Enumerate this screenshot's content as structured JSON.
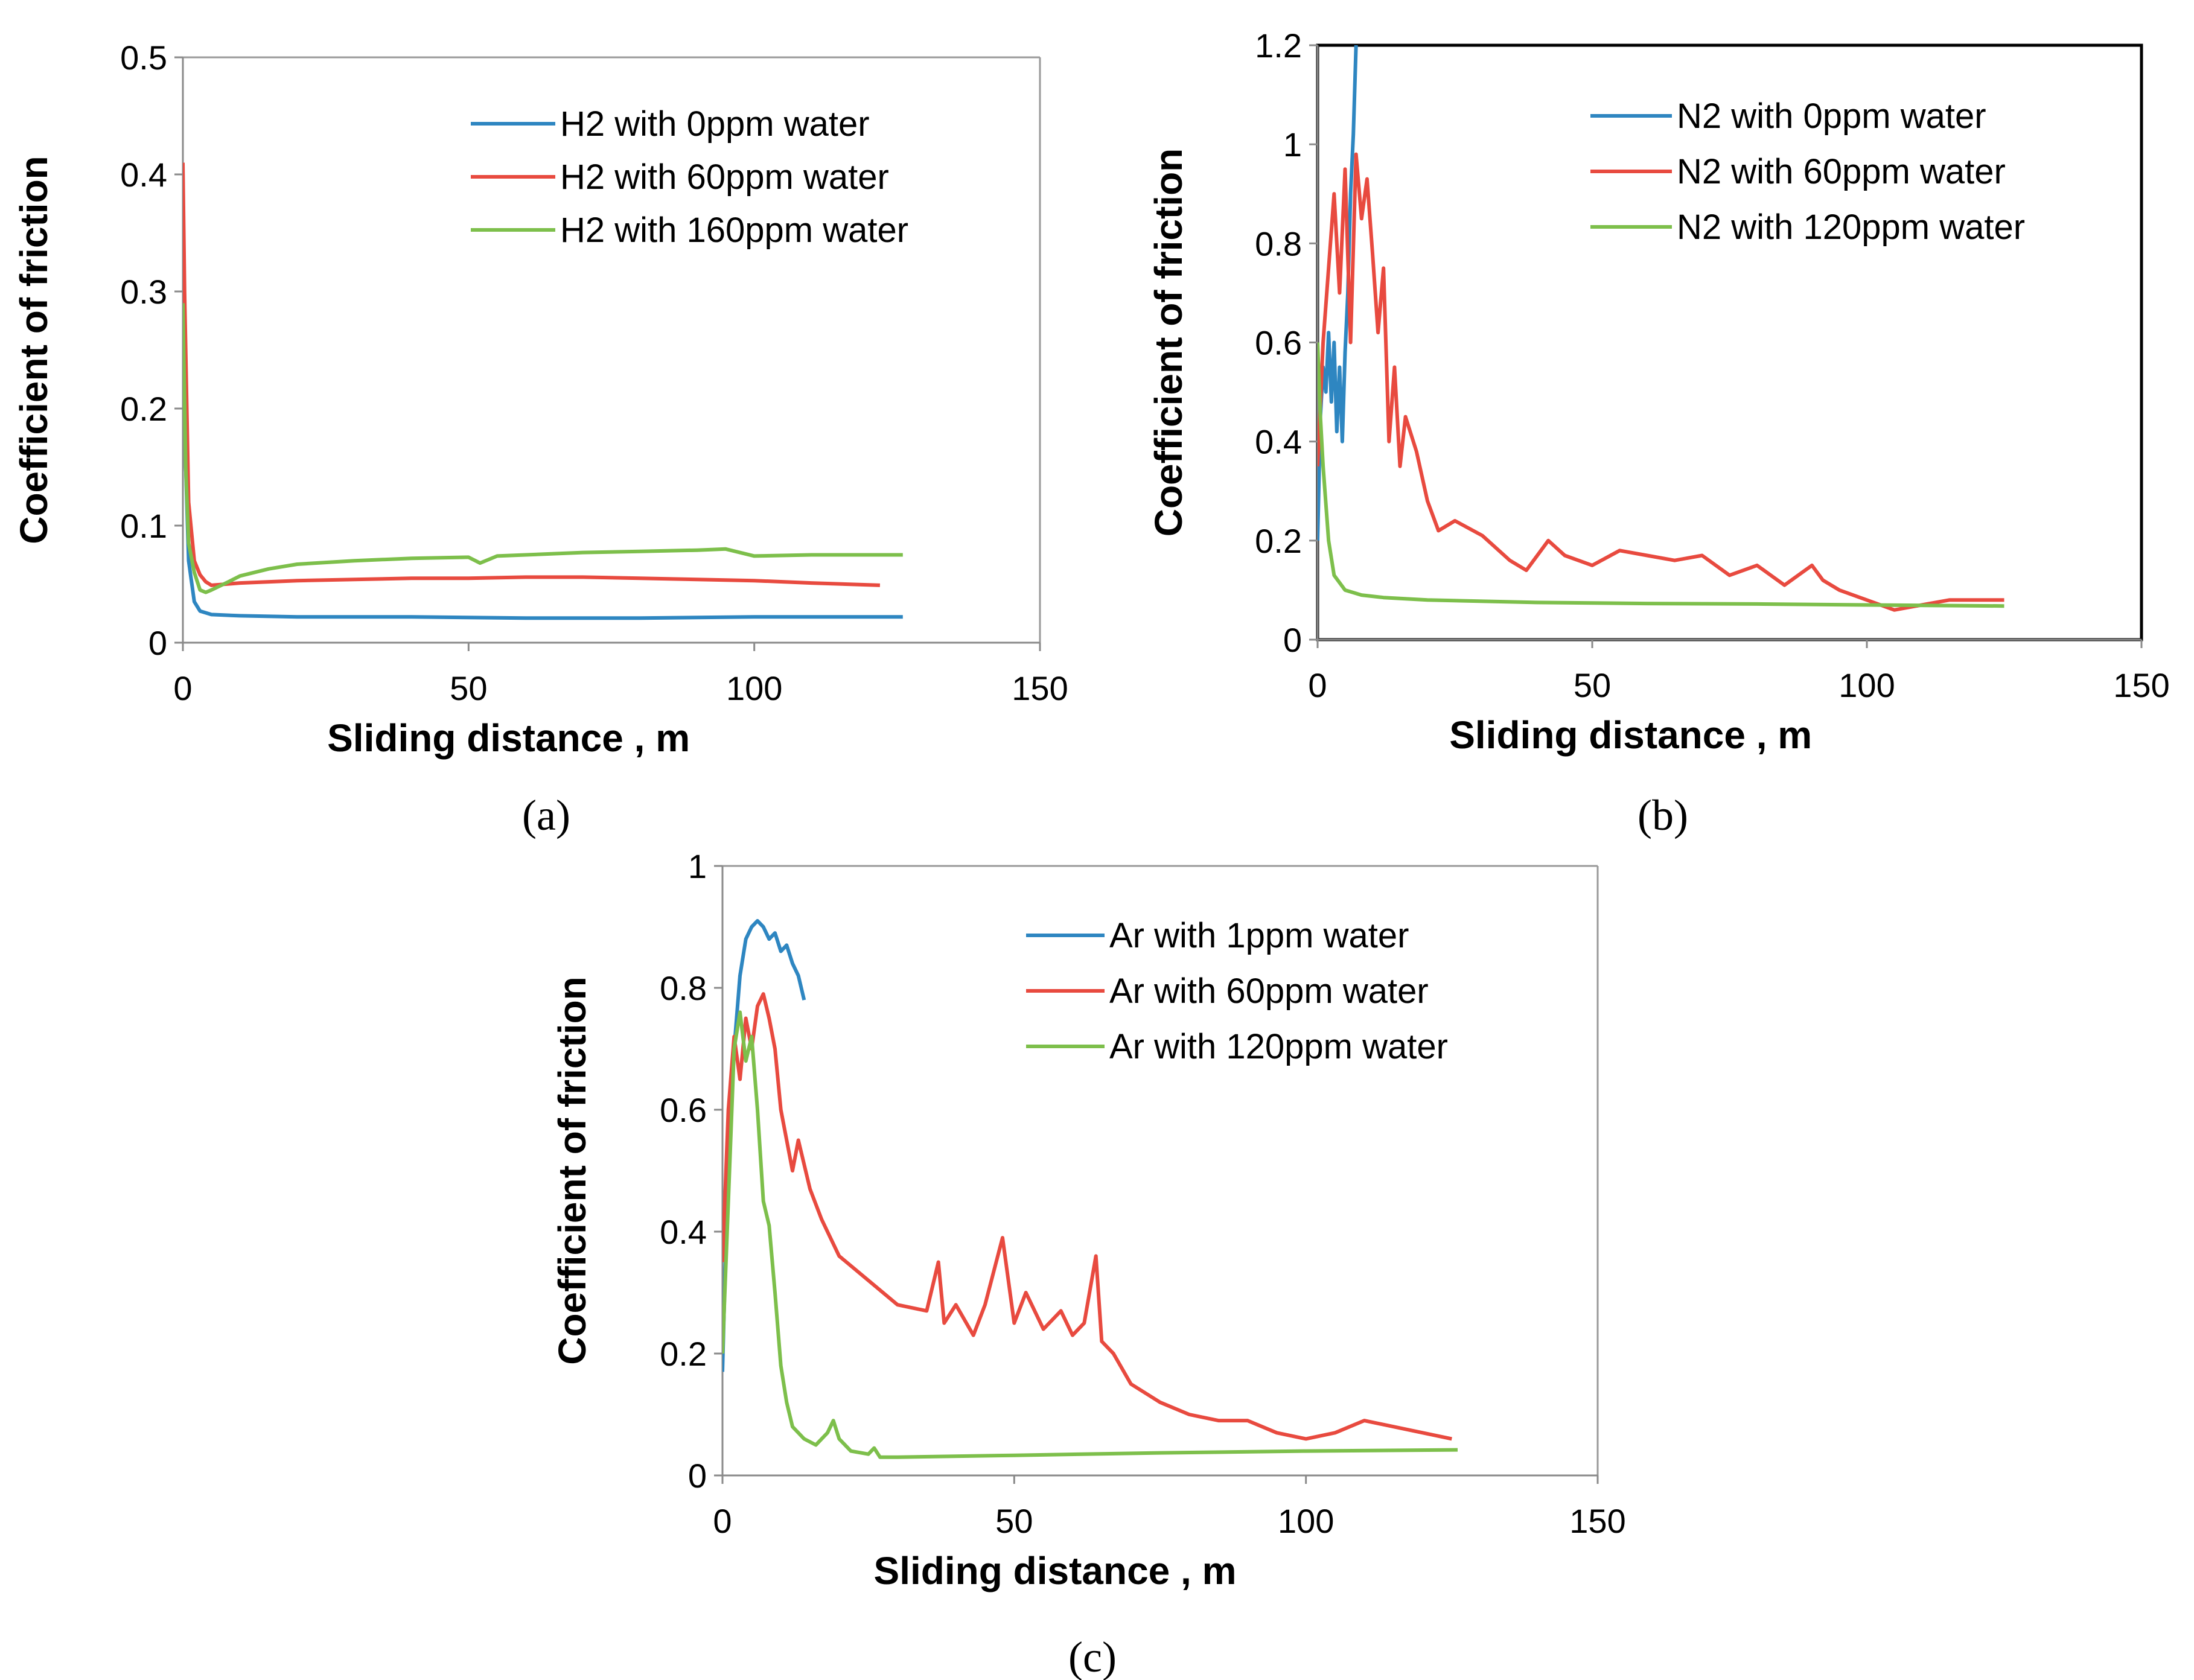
{
  "chart_data": [
    {
      "type": "line",
      "caption": "(a)",
      "xlabel": "Sliding distance , m",
      "ylabel": "Coefficient of friction",
      "xlim": [
        0,
        150
      ],
      "ylim": [
        0,
        0.5
      ],
      "xticks": [
        "0",
        "50",
        "100",
        "150"
      ],
      "yticks": [
        "0",
        "0.1",
        "0.2",
        "0.3",
        "0.4",
        "0.5"
      ],
      "legend_position": "top-right",
      "border": "partial",
      "series": [
        {
          "name": "H2 with 0ppm water",
          "color": "#2E86C1",
          "x": [
            0,
            0.5,
            1,
            2,
            3,
            5,
            10,
            20,
            40,
            60,
            80,
            100,
            126
          ],
          "y": [
            0.4,
            0.15,
            0.07,
            0.035,
            0.027,
            0.024,
            0.023,
            0.022,
            0.022,
            0.021,
            0.021,
            0.022,
            0.022
          ]
        },
        {
          "name": "H2 with 60ppm water",
          "color": "#E84A3F",
          "x": [
            0,
            0.3,
            1,
            2,
            3,
            4,
            5,
            10,
            20,
            30,
            40,
            50,
            60,
            70,
            80,
            90,
            100,
            110,
            122
          ],
          "y": [
            0.41,
            0.3,
            0.12,
            0.07,
            0.058,
            0.052,
            0.049,
            0.051,
            0.053,
            0.054,
            0.055,
            0.055,
            0.056,
            0.056,
            0.055,
            0.054,
            0.053,
            0.051,
            0.049
          ]
        },
        {
          "name": "H2 with 160ppm water",
          "color": "#7DBF4B",
          "x": [
            0,
            0.5,
            1,
            2,
            3,
            4,
            5,
            8,
            10,
            15,
            20,
            30,
            40,
            50,
            52,
            55,
            60,
            70,
            80,
            90,
            95,
            100,
            110,
            126
          ],
          "y": [
            0.29,
            0.15,
            0.085,
            0.06,
            0.045,
            0.043,
            0.045,
            0.052,
            0.057,
            0.063,
            0.067,
            0.07,
            0.072,
            0.073,
            0.068,
            0.074,
            0.075,
            0.077,
            0.078,
            0.079,
            0.08,
            0.074,
            0.075,
            0.075
          ]
        }
      ]
    },
    {
      "type": "line",
      "caption": "(b)",
      "xlabel": "Sliding distance , m",
      "ylabel": "Coefficient of friction",
      "xlim": [
        0,
        150
      ],
      "ylim": [
        0,
        1.2
      ],
      "xticks": [
        "0",
        "50",
        "100",
        "150"
      ],
      "yticks": [
        "0",
        "0.2",
        "0.4",
        "0.6",
        "0.8",
        "1",
        "1.2"
      ],
      "legend_position": "top-right",
      "border": "full",
      "series": [
        {
          "name": "N2 with 0ppm water",
          "color": "#2E86C1",
          "x": [
            0,
            0.5,
            1,
            1.5,
            2,
            2.5,
            3,
            3.5,
            4,
            4.5,
            5,
            5.5,
            6,
            6.5,
            7
          ],
          "y": [
            0.2,
            0.45,
            0.55,
            0.5,
            0.62,
            0.48,
            0.6,
            0.42,
            0.55,
            0.4,
            0.58,
            0.7,
            0.9,
            1.02,
            1.2
          ]
        },
        {
          "name": "N2 with 60ppm water",
          "color": "#E84A3F",
          "x": [
            0,
            1,
            2,
            3,
            4,
            5,
            6,
            7,
            8,
            9,
            10,
            11,
            12,
            13,
            14,
            15,
            16,
            18,
            20,
            22,
            25,
            30,
            35,
            38,
            42,
            45,
            50,
            55,
            60,
            65,
            70,
            75,
            80,
            85,
            90,
            92,
            95,
            100,
            105,
            110,
            115,
            120,
            125
          ],
          "y": [
            0.35,
            0.6,
            0.75,
            0.9,
            0.7,
            0.95,
            0.6,
            0.98,
            0.85,
            0.93,
            0.78,
            0.62,
            0.75,
            0.4,
            0.55,
            0.35,
            0.45,
            0.38,
            0.28,
            0.22,
            0.24,
            0.21,
            0.16,
            0.14,
            0.2,
            0.17,
            0.15,
            0.18,
            0.17,
            0.16,
            0.17,
            0.13,
            0.15,
            0.11,
            0.15,
            0.12,
            0.1,
            0.08,
            0.06,
            0.07,
            0.08,
            0.08,
            0.08
          ]
        },
        {
          "name": "N2 with 120ppm water",
          "color": "#7DBF4B",
          "x": [
            0,
            0.5,
            1,
            2,
            3,
            5,
            8,
            12,
            20,
            40,
            60,
            80,
            100,
            125
          ],
          "y": [
            0.6,
            0.45,
            0.35,
            0.2,
            0.13,
            0.1,
            0.09,
            0.085,
            0.08,
            0.075,
            0.073,
            0.072,
            0.07,
            0.068
          ]
        }
      ]
    },
    {
      "type": "line",
      "caption": "(c)",
      "xlabel": "Sliding distance , m",
      "ylabel": "Coefficient of friction",
      "xlim": [
        0,
        150
      ],
      "ylim": [
        0,
        1
      ],
      "xticks": [
        "0",
        "50",
        "100",
        "150"
      ],
      "yticks": [
        "0",
        "0.2",
        "0.4",
        "0.6",
        "0.8",
        "1"
      ],
      "legend_position": "top-right",
      "border": "partial",
      "series": [
        {
          "name": "Ar with 1ppm water",
          "color": "#2E86C1",
          "x": [
            0,
            0.5,
            1,
            2,
            3,
            4,
            5,
            6,
            7,
            8,
            9,
            10,
            11,
            12,
            13,
            14
          ],
          "y": [
            0.17,
            0.35,
            0.55,
            0.7,
            0.82,
            0.88,
            0.9,
            0.91,
            0.9,
            0.88,
            0.89,
            0.86,
            0.87,
            0.84,
            0.82,
            0.78
          ]
        },
        {
          "name": "Ar with 60ppm water",
          "color": "#E84A3F",
          "x": [
            0,
            1,
            2,
            3,
            4,
            5,
            6,
            7,
            8,
            9,
            10,
            12,
            13,
            15,
            17,
            20,
            25,
            30,
            35,
            37,
            38,
            40,
            43,
            45,
            48,
            50,
            52,
            55,
            58,
            60,
            62,
            64,
            65,
            67,
            70,
            75,
            80,
            85,
            90,
            95,
            100,
            105,
            110,
            115,
            120,
            125
          ],
          "y": [
            0.35,
            0.6,
            0.72,
            0.65,
            0.75,
            0.7,
            0.77,
            0.79,
            0.75,
            0.7,
            0.6,
            0.5,
            0.55,
            0.47,
            0.42,
            0.36,
            0.32,
            0.28,
            0.27,
            0.35,
            0.25,
            0.28,
            0.23,
            0.28,
            0.39,
            0.25,
            0.3,
            0.24,
            0.27,
            0.23,
            0.25,
            0.36,
            0.22,
            0.2,
            0.15,
            0.12,
            0.1,
            0.09,
            0.09,
            0.07,
            0.06,
            0.07,
            0.09,
            0.08,
            0.07,
            0.06
          ]
        },
        {
          "name": "Ar with 120ppm water",
          "color": "#7DBF4B",
          "x": [
            0,
            1,
            2,
            3,
            4,
            5,
            6,
            7,
            8,
            9,
            10,
            11,
            12,
            14,
            16,
            18,
            19,
            20,
            22,
            25,
            26,
            27,
            30,
            50,
            75,
            100,
            126
          ],
          "y": [
            0.2,
            0.45,
            0.7,
            0.76,
            0.68,
            0.72,
            0.6,
            0.45,
            0.41,
            0.3,
            0.18,
            0.12,
            0.08,
            0.06,
            0.05,
            0.07,
            0.09,
            0.06,
            0.04,
            0.035,
            0.045,
            0.03,
            0.03,
            0.033,
            0.037,
            0.04,
            0.042
          ]
        }
      ]
    }
  ]
}
